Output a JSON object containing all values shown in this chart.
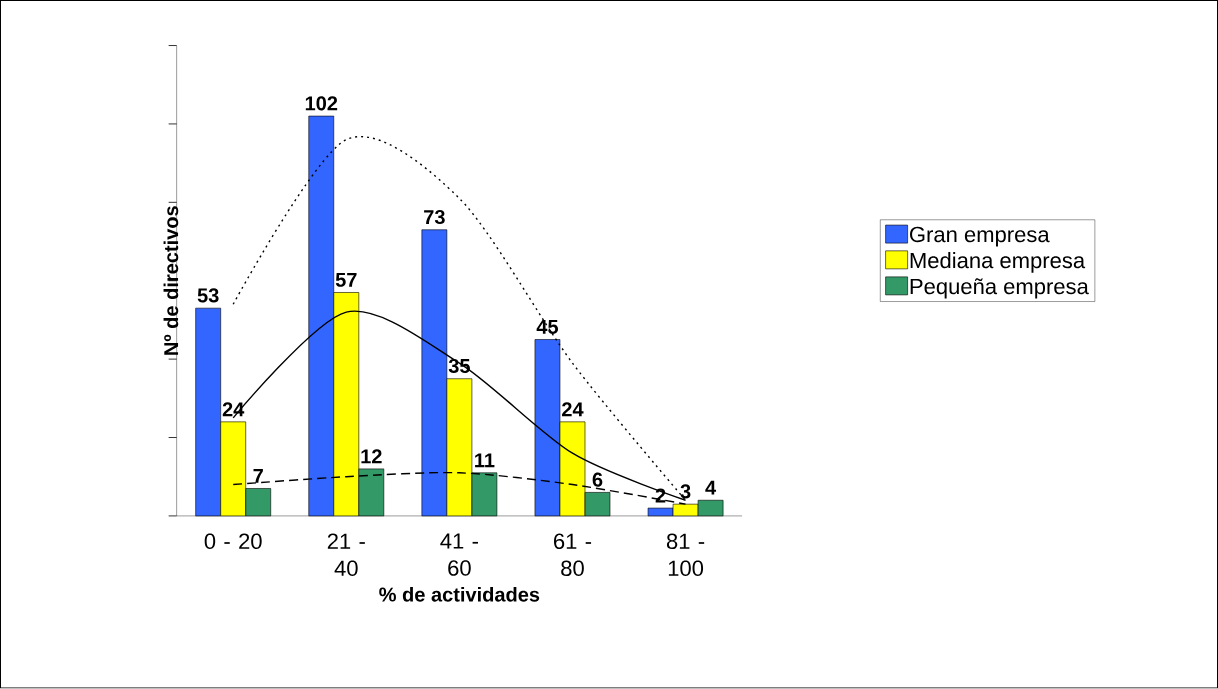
{
  "chart_data": {
    "type": "bar",
    "xlabel": "% de actividades",
    "ylabel": "Nº de directivos",
    "categories": [
      "0 - 20",
      "21 - 40",
      "41 - 60",
      "61 - 80",
      "81 - 100"
    ],
    "series": [
      {
        "name": "Gran empresa",
        "color": "#3366ff",
        "values": [
          53,
          102,
          73,
          45,
          2
        ],
        "value_labels": [
          "53",
          "102",
          "73",
          "45",
          "2"
        ]
      },
      {
        "name": "Mediana empresa",
        "color": "#ffff00",
        "values": [
          24,
          57,
          35,
          24,
          3
        ],
        "value_labels": [
          "24",
          "57",
          "35",
          "24",
          "3"
        ]
      },
      {
        "name": "Pequeña empresa",
        "color": "#339966",
        "values": [
          7,
          12,
          11,
          6,
          4
        ],
        "value_labels": [
          "7",
          "12",
          "11",
          "6",
          "4"
        ]
      },
      {
        "type": "line",
        "color": "#000000",
        "line_style": "dotted",
        "values": [
          54,
          96,
          81,
          39,
          4
        ]
      },
      {
        "type": "line",
        "color": "#000000",
        "line_style": "solid",
        "values": [
          25,
          52,
          39,
          16,
          4
        ]
      },
      {
        "type": "line",
        "color": "#000000",
        "line_style": "dashed",
        "values": [
          8,
          10,
          11,
          8,
          3
        ]
      }
    ],
    "ylim": [
      0,
      120
    ],
    "yticks": [
      {
        "value": 0,
        "label": null
      },
      {
        "value": 20,
        "label": null
      },
      {
        "value": 40,
        "label": null
      },
      {
        "value": 60,
        "label": null
      },
      {
        "value": 80,
        "label": null
      },
      {
        "value": 100,
        "label": null
      },
      {
        "value": 120,
        "label": null
      }
    ],
    "tick_labels": "x",
    "grid": false,
    "legend": "right"
  }
}
